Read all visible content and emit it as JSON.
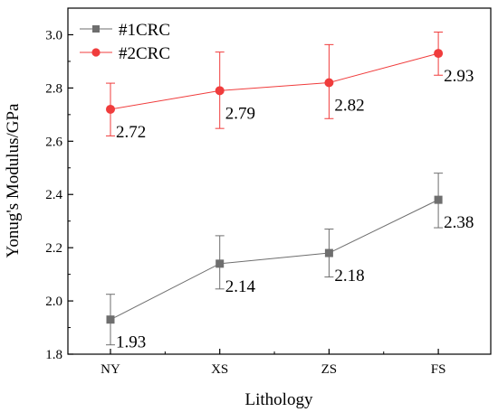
{
  "chart_data": {
    "type": "line",
    "xlabel": "Lithology",
    "ylabel": "Yonug's Modulus/GPa",
    "categories": [
      "NY",
      "XS",
      "ZS",
      "FS"
    ],
    "ylim": [
      1.8,
      3.1
    ],
    "yticks": [
      "1.8",
      "2.0",
      "2.2",
      "2.4",
      "2.6",
      "2.8",
      "3.0"
    ],
    "grid": false,
    "legend_position": "top-left",
    "series": [
      {
        "name": "#1CRC",
        "color": "#6e6e6e",
        "marker": "square",
        "values": [
          1.93,
          2.14,
          2.18,
          2.38
        ],
        "labels": [
          "1.93",
          "2.14",
          "2.18",
          "2.38"
        ],
        "err_low": [
          1.835,
          2.045,
          2.09,
          2.275
        ],
        "err_high": [
          2.025,
          2.245,
          2.27,
          2.48
        ]
      },
      {
        "name": "#2CRC",
        "color": "#f03c3c",
        "marker": "circle",
        "values": [
          2.72,
          2.79,
          2.82,
          2.93
        ],
        "labels": [
          "2.72",
          "2.79",
          "2.82",
          "2.93"
        ],
        "err_low": [
          2.62,
          2.648,
          2.685,
          2.848
        ],
        "err_high": [
          2.818,
          2.935,
          2.963,
          3.01
        ]
      }
    ]
  }
}
